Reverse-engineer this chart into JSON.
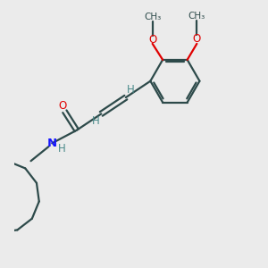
{
  "background_color": "#ebebeb",
  "bond_color": "#2d4a4a",
  "N_color": "#1515ff",
  "O_color": "#e00000",
  "H_color": "#4a8a8a",
  "line_width": 1.6,
  "font_size": 8.5,
  "figsize": [
    3.0,
    3.0
  ],
  "dpi": 100,
  "xlim": [
    -1.5,
    5.5
  ],
  "ylim": [
    -3.2,
    4.5
  ]
}
